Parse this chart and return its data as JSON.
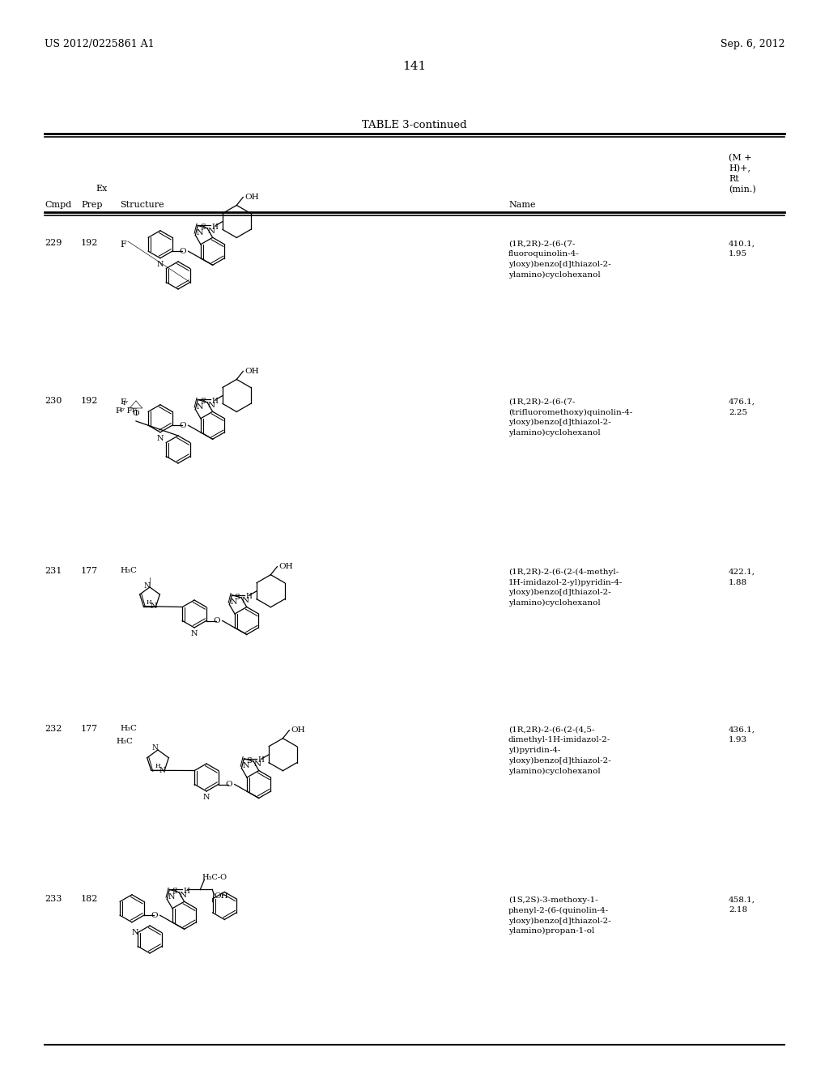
{
  "page_header_left": "US 2012/0225861 A1",
  "page_header_right": "Sep. 6, 2012",
  "page_number": "141",
  "table_title": "TABLE 3-continued",
  "background": "#ffffff",
  "text_color": "#000000",
  "rows": [
    {
      "cmpd": "229",
      "prep": "192",
      "name": "(1R,2R)-2-(6-(7-\nfluoroquinolin-4-\nyloxy)benzo[d]thiazol-2-\nylamino)cyclohexanol",
      "ms": "410.1,\n1.95"
    },
    {
      "cmpd": "230",
      "prep": "192",
      "name": "(1R,2R)-2-(6-(7-\n(trifluoromethoxy)quinolin-4-\nyloxy)benzo[d]thiazol-2-\nylamino)cyclohexanol",
      "ms": "476.1,\n2.25"
    },
    {
      "cmpd": "231",
      "prep": "177",
      "name": "(1R,2R)-2-(6-(2-(4-methyl-\n1H-imidazol-2-yl)pyridin-4-\nyloxy)benzo[d]thiazol-2-\nylamino)cyclohexanol",
      "ms": "422.1,\n1.88"
    },
    {
      "cmpd": "232",
      "prep": "177",
      "name": "(1R,2R)-2-(6-(2-(4,5-\ndimethyl-1H-imidazol-2-\nyl)pyridin-4-\nyloxy)benzo[d]thiazol-2-\nylamino)cyclohexanol",
      "ms": "436.1,\n1.93"
    },
    {
      "cmpd": "233",
      "prep": "182",
      "name": "(1S,2S)-3-methoxy-1-\nphenyl-2-(6-(quinolin-4-\nyloxy)benzo[d]thiazol-2-\nylamino)propan-1-ol",
      "ms": "458.1,\n2.18"
    }
  ]
}
